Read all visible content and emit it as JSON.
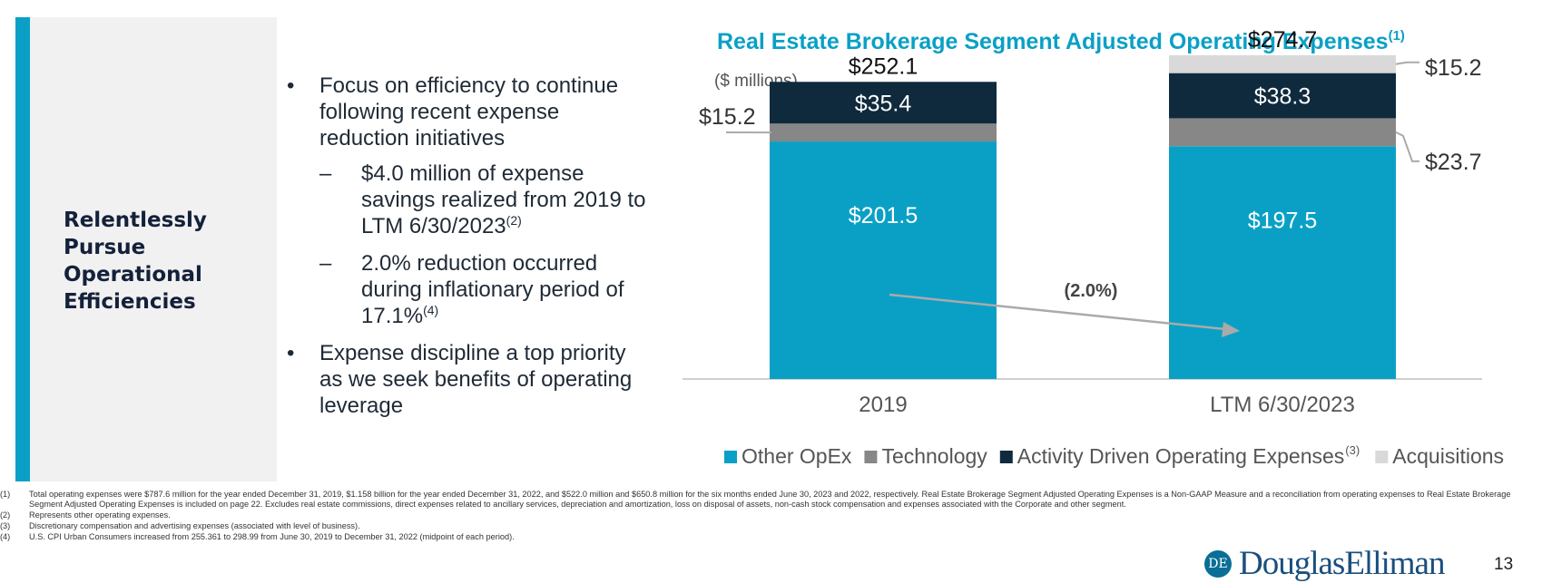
{
  "sidebar": {
    "title": "Relentlessly Pursue Operational Efficiencies"
  },
  "bullets": {
    "b1": "Focus on efficiency to continue following recent expense reduction initiatives",
    "b1a": "$4.0 million of expense savings realized from 2019 to LTM 6/30/2023",
    "b1a_sup": "(2)",
    "b1b": "2.0% reduction occurred during inflationary period of 17.1%",
    "b1b_sup": "(4)",
    "b2": "Expense discipline a top priority as we seek benefits of operating leverage"
  },
  "chart_data": {
    "type": "bar",
    "stacked": true,
    "title": "Real Estate Brokerage Segment Adjusted Operating Expenses",
    "title_sup": "(1)",
    "units_label": "($ millions)",
    "categories": [
      "2019",
      "LTM 6/30/2023"
    ],
    "series": [
      {
        "name": "Other OpEx",
        "values": [
          201.5,
          197.5
        ],
        "color": "#0aa0c6",
        "labels": [
          "$201.5",
          "$197.5"
        ]
      },
      {
        "name": "Technology",
        "values": [
          15.2,
          23.7
        ],
        "color": "#878787",
        "labels": [
          "$15.2",
          "$23.7"
        ]
      },
      {
        "name": "Activity Driven Operating Expenses",
        "legend_sup": "(3)",
        "values": [
          35.4,
          38.3
        ],
        "color": "#0f2a3d",
        "labels": [
          "$35.4",
          "$38.3"
        ]
      },
      {
        "name": "Acquisitions",
        "values": [
          0,
          15.2
        ],
        "color": "#d9d9d9",
        "labels": [
          "",
          "$15.2"
        ]
      }
    ],
    "totals": [
      "$252.1",
      "$274.7"
    ],
    "change_annotation": "(2.0%)",
    "legend_position": "bottom"
  },
  "footnotes": [
    {
      "num": "(1)",
      "text": "Total operating expenses were $787.6 million for the year ended December 31, 2019, $1.158 billion for the year ended December 31, 2022, and $522.0 million and $650.8 million for the six months ended June 30, 2023 and 2022, respectively. Real Estate Brokerage Segment Adjusted Operating Expenses is a Non-GAAP Measure and a reconciliation from operating expenses to Real Estate Brokerage Segment Adjusted Operating Expenses is included on page 22. Excludes real estate commissions, direct expenses related to ancillary services, depreciation and amortization, loss on disposal of assets, non-cash stock compensation and expenses associated with the Corporate and other segment."
    },
    {
      "num": "(2)",
      "text": "Represents other operating expenses."
    },
    {
      "num": "(3)",
      "text": "Discretionary compensation and advertising expenses (associated with level of business)."
    },
    {
      "num": "(4)",
      "text": "U.S. CPI Urban Consumers increased from 255.361 to 298.99 from June 30, 2019 to December 31, 2022 (midpoint of each period)."
    }
  ],
  "brand": {
    "logo_text": "DouglasElliman",
    "logo_mark": "DE"
  },
  "page_number": "13"
}
